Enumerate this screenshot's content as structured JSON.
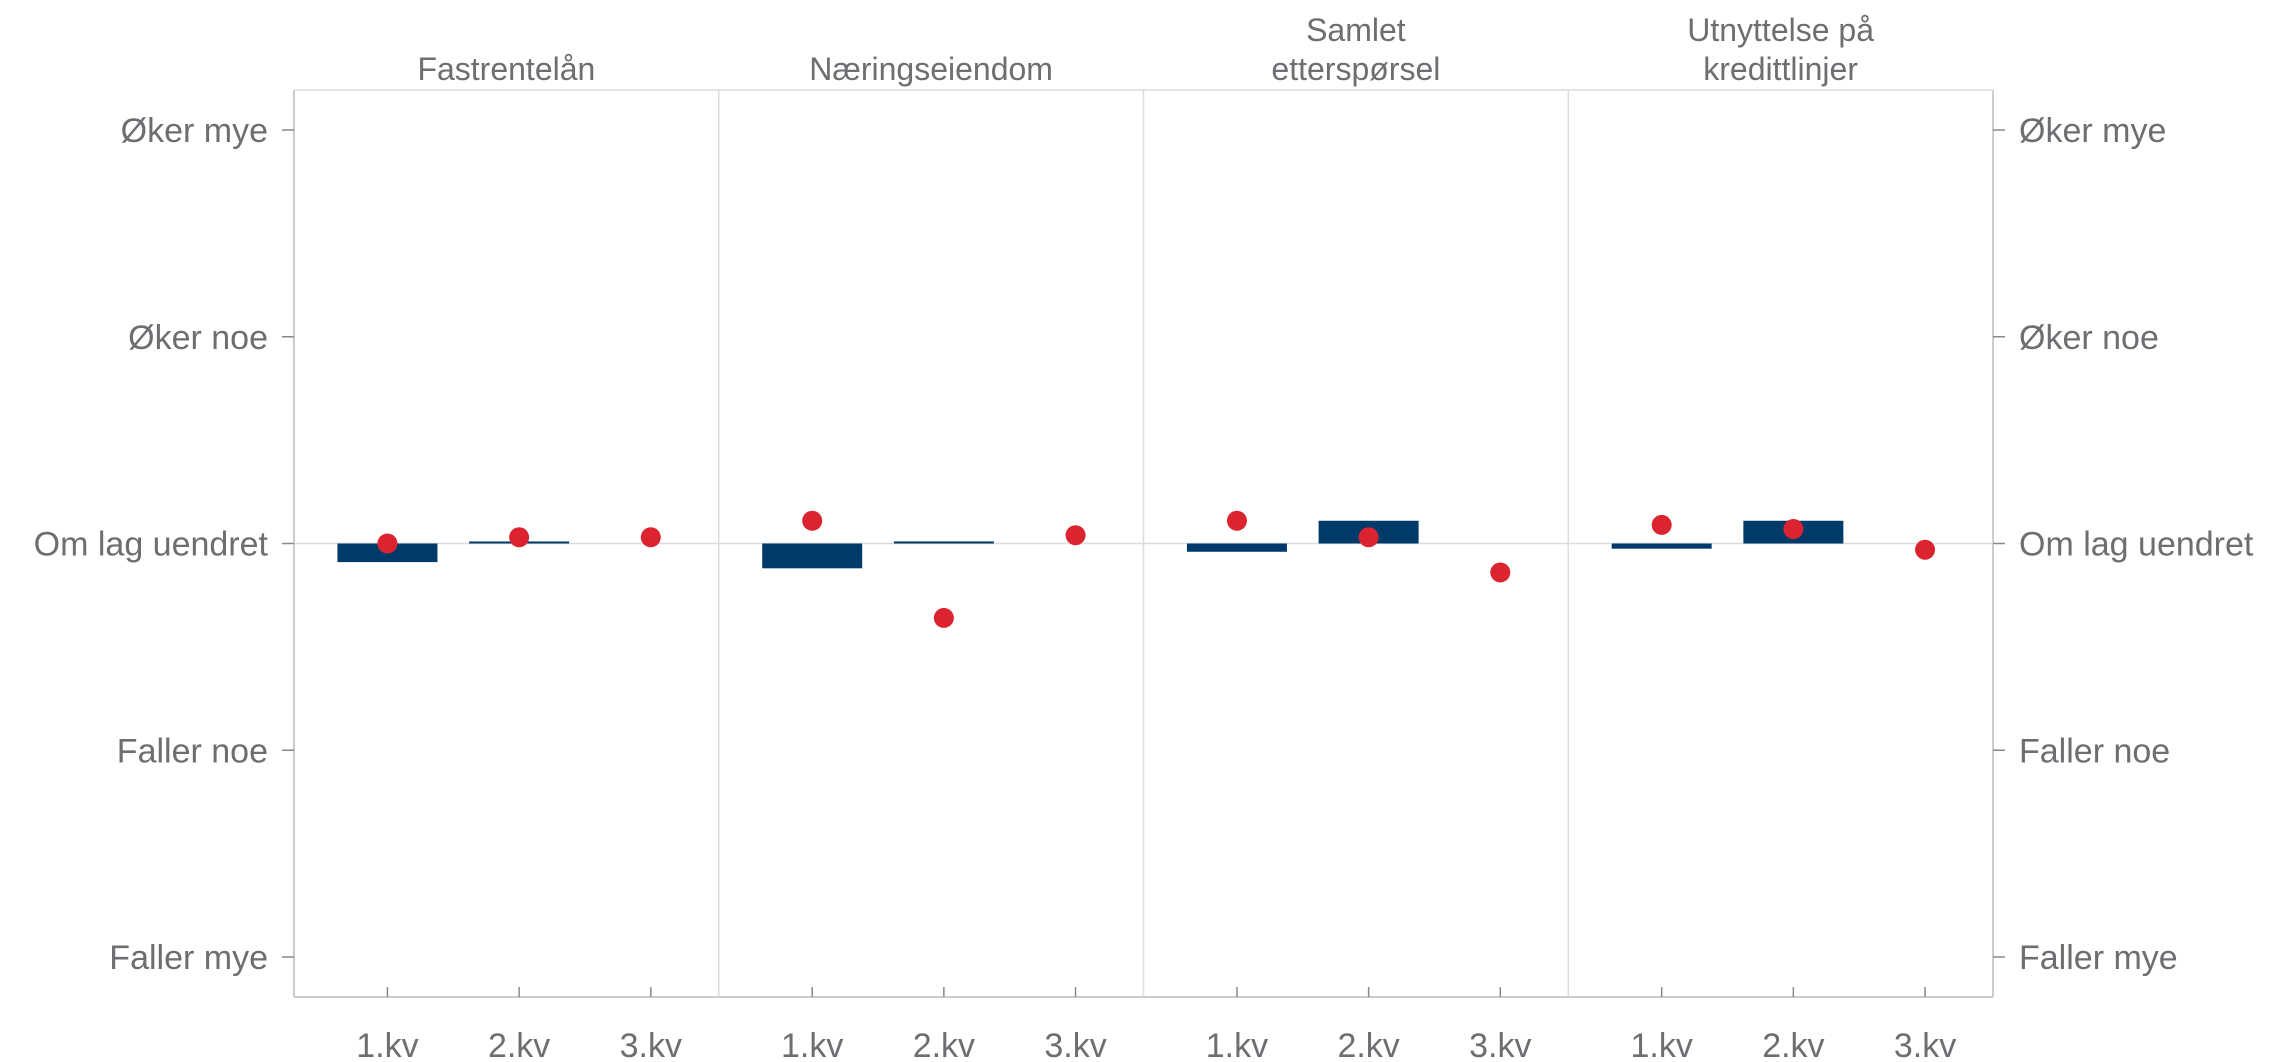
{
  "chart_data": {
    "type": "bar",
    "y_scale": {
      "min": -2,
      "max": 2,
      "tick_values": [
        2,
        1,
        0,
        -1,
        -2
      ],
      "tick_labels": [
        "Øker mye",
        "Øker noe",
        "Om lag uendret",
        "Faller noe",
        "Faller mye"
      ]
    },
    "categories": [
      "1.kv",
      "2.kv",
      "3.kv"
    ],
    "colors": {
      "bar": "#003a6b",
      "marker": "#dc2431",
      "axis": "#bcbcbc",
      "divider": "#dcdcdc",
      "text": "#6d6e71"
    },
    "grid": false,
    "panels": [
      {
        "title_lines": [
          "Fastrentelån"
        ],
        "bars": [
          -0.09,
          0.005,
          null
        ],
        "markers": [
          0.0,
          0.03,
          0.03
        ]
      },
      {
        "title_lines": [
          "Næringseiendom"
        ],
        "bars": [
          -0.12,
          0.01,
          null
        ],
        "markers": [
          0.11,
          -0.36,
          0.04
        ]
      },
      {
        "title_lines": [
          "Samlet",
          "etterspørsel"
        ],
        "bars": [
          -0.04,
          0.11,
          null
        ],
        "markers": [
          0.11,
          0.03,
          -0.14
        ]
      },
      {
        "title_lines": [
          "Utnyttelse på",
          "kredittlinjer"
        ],
        "bars": [
          -0.025,
          0.11,
          null
        ],
        "markers": [
          0.09,
          0.07,
          -0.03
        ]
      }
    ]
  }
}
